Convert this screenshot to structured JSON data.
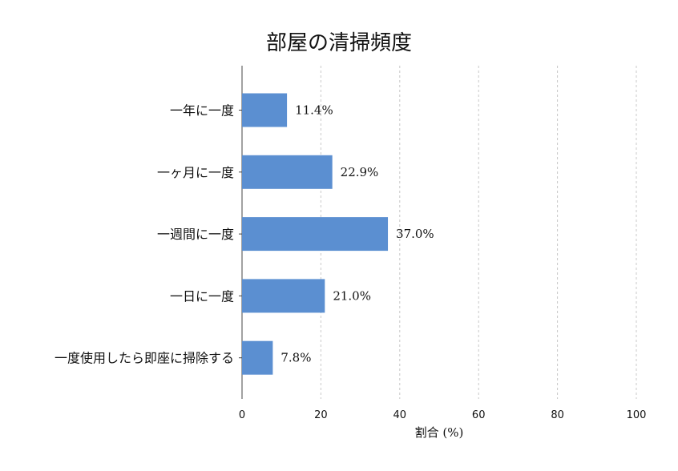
{
  "colors": {
    "bar": "#5b8fd1",
    "grid": "#c8c8c8"
  },
  "chart_data": {
    "type": "bar",
    "orientation": "horizontal",
    "title": "部屋の清掃頻度",
    "xlabel": "割合 (%)",
    "ylabel": "",
    "xlim": [
      0,
      100
    ],
    "xticks": [
      "0",
      "20",
      "40",
      "60",
      "80",
      "100"
    ],
    "categories": [
      "一年に一度",
      "一ヶ月に一度",
      "一週間に一度",
      "一日に一度",
      "一度使用したら即座に掃除する"
    ],
    "values": [
      11.4,
      22.9,
      37.0,
      21.0,
      7.8
    ],
    "value_labels": [
      "11.4%",
      "22.9%",
      "37.0%",
      "21.0%",
      "7.8%"
    ],
    "grid": "x",
    "legend": "none"
  }
}
